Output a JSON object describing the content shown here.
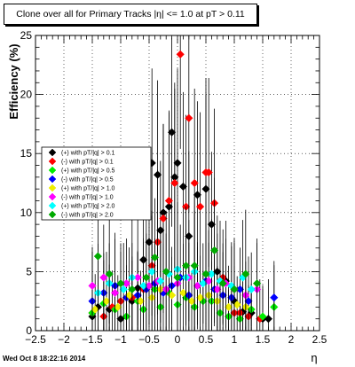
{
  "chart_data": {
    "type": "scatter",
    "title": "Clone  over all for Primary Tracks |η| <= 1.0 at pT > 0.11",
    "xlabel": "η",
    "ylabel": "Efficiency (%)",
    "xlim": [
      -2.5,
      2.5
    ],
    "ylim": [
      0,
      25
    ],
    "x_ticks": [
      "−2.5",
      "−2",
      "−1.5",
      "−1",
      "−0.5",
      "0",
      "0.5",
      "1",
      "1.5",
      "2",
      "2.5"
    ],
    "y_ticks": [
      "0",
      "5",
      "10",
      "15",
      "20",
      "25"
    ],
    "grid": true,
    "legend_position": "mid-left",
    "footer": "Wed Oct  8 18:22:16 2014",
    "series": [
      {
        "name": "(+) with pT/|q| > 0.1",
        "color": "#000000",
        "points": [
          [
            -1.5,
            1.2
          ],
          [
            -1.4,
            2.0
          ],
          [
            -1.2,
            1.8
          ],
          [
            -1.0,
            1.0
          ],
          [
            -0.8,
            2.5
          ],
          [
            -0.7,
            3.6
          ],
          [
            -0.6,
            6.0
          ],
          [
            -0.5,
            7.5
          ],
          [
            -0.45,
            14.2
          ],
          [
            -0.35,
            13.2
          ],
          [
            -0.3,
            8.5
          ],
          [
            -0.25,
            10.0
          ],
          [
            -0.15,
            10.5
          ],
          [
            -0.1,
            16.8
          ],
          [
            -0.05,
            13.0
          ],
          [
            0.0,
            14.2
          ],
          [
            0.1,
            12.2
          ],
          [
            0.2,
            8.0
          ],
          [
            0.35,
            11.5
          ],
          [
            0.5,
            12.0
          ],
          [
            0.6,
            9.0
          ],
          [
            0.7,
            5.0
          ],
          [
            0.85,
            4.2
          ],
          [
            1.0,
            2.5
          ],
          [
            1.15,
            1.6
          ],
          [
            1.3,
            1.5
          ],
          [
            1.5,
            1.0
          ],
          [
            1.6,
            1.0
          ]
        ]
      },
      {
        "name": "(-) with pT/|q| > 0.1",
        "color": "#ff0000",
        "points": [
          [
            -1.5,
            1.5
          ],
          [
            -1.3,
            1.2
          ],
          [
            -1.15,
            2.0
          ],
          [
            -1.0,
            2.5
          ],
          [
            -0.8,
            2.8
          ],
          [
            -0.6,
            3.5
          ],
          [
            -0.45,
            5.5
          ],
          [
            -0.35,
            7.5
          ],
          [
            -0.25,
            9.5
          ],
          [
            -0.15,
            11.0
          ],
          [
            -0.05,
            12.5
          ],
          [
            0.05,
            23.4
          ],
          [
            0.15,
            10.5
          ],
          [
            0.2,
            18.0
          ],
          [
            0.3,
            12.5
          ],
          [
            0.4,
            10.5
          ],
          [
            0.5,
            13.4
          ],
          [
            0.55,
            13.4
          ],
          [
            0.65,
            10.8
          ],
          [
            0.8,
            4.5
          ],
          [
            1.0,
            1.5
          ],
          [
            1.1,
            1.5
          ],
          [
            1.25,
            1.2
          ],
          [
            1.45,
            1.0
          ]
        ]
      },
      {
        "name": "(+) with pT/|q| > 0.5",
        "color": "#00ee00",
        "points": [
          [
            -1.5,
            1.5
          ],
          [
            -1.3,
            2.3
          ],
          [
            -1.1,
            1.8
          ],
          [
            -0.9,
            1.2
          ],
          [
            -0.7,
            2.5
          ],
          [
            -0.6,
            1.8
          ],
          [
            -0.4,
            3.5
          ],
          [
            -0.3,
            2.0
          ],
          [
            -0.15,
            3.2
          ],
          [
            0.0,
            2.2
          ],
          [
            0.15,
            2.8
          ],
          [
            0.3,
            2.0
          ],
          [
            0.45,
            2.5
          ],
          [
            0.6,
            2.5
          ],
          [
            0.75,
            1.5
          ],
          [
            0.9,
            1.2
          ],
          [
            1.1,
            1.0
          ],
          [
            1.3,
            1.8
          ],
          [
            1.5,
            1.2
          ],
          [
            1.7,
            2.0
          ]
        ]
      },
      {
        "name": "(-) with pT/|q| > 0.5",
        "color": "#0000ff",
        "points": [
          [
            -1.5,
            2.5
          ],
          [
            -1.3,
            3.2
          ],
          [
            -1.1,
            3.8
          ],
          [
            -0.9,
            2.8
          ],
          [
            -0.7,
            3.0
          ],
          [
            -0.55,
            3.5
          ],
          [
            -0.4,
            4.0
          ],
          [
            -0.25,
            3.2
          ],
          [
            -0.1,
            3.8
          ],
          [
            0.05,
            4.5
          ],
          [
            0.2,
            3.0
          ],
          [
            0.35,
            3.8
          ],
          [
            0.5,
            4.2
          ],
          [
            0.65,
            3.5
          ],
          [
            0.8,
            3.0
          ],
          [
            0.95,
            2.8
          ],
          [
            1.1,
            3.5
          ],
          [
            1.25,
            2.5
          ],
          [
            1.7,
            2.8
          ]
        ]
      },
      {
        "name": "(+) with pT/|q| > 1.0",
        "color": "#eeee00",
        "points": [
          [
            -1.45,
            1.8
          ],
          [
            -1.25,
            2.5
          ],
          [
            -1.05,
            2.0
          ],
          [
            -0.85,
            3.0
          ],
          [
            -0.65,
            2.5
          ],
          [
            -0.45,
            2.8
          ],
          [
            -0.3,
            3.5
          ],
          [
            -0.1,
            3.0
          ],
          [
            0.1,
            3.2
          ],
          [
            0.25,
            2.5
          ],
          [
            0.4,
            2.8
          ],
          [
            0.55,
            3.0
          ],
          [
            0.7,
            2.5
          ],
          [
            0.9,
            2.0
          ],
          [
            1.05,
            2.2
          ],
          [
            1.2,
            2.0
          ]
        ]
      },
      {
        "name": "(-) with pT/|q| > 1.0",
        "color": "#ff00ff",
        "points": [
          [
            -1.5,
            3.8
          ],
          [
            -1.3,
            4.5
          ],
          [
            -1.1,
            3.2
          ],
          [
            -0.9,
            4.0
          ],
          [
            -0.7,
            4.5
          ],
          [
            -0.5,
            3.8
          ],
          [
            -0.35,
            4.2
          ],
          [
            -0.2,
            3.5
          ],
          [
            0.0,
            4.0
          ],
          [
            0.2,
            4.5
          ],
          [
            0.35,
            3.8
          ],
          [
            0.55,
            4.2
          ],
          [
            0.7,
            3.5
          ],
          [
            0.85,
            4.0
          ],
          [
            1.0,
            3.5
          ],
          [
            1.2,
            3.0
          ],
          [
            1.4,
            3.5
          ]
        ]
      },
      {
        "name": "(+) with pT/|q| > 2.0",
        "color": "#00ffff",
        "points": [
          [
            -1.4,
            3.2
          ],
          [
            -1.2,
            4.0
          ],
          [
            -0.95,
            3.5
          ],
          [
            -0.8,
            4.5
          ],
          [
            -0.6,
            3.8
          ],
          [
            -0.45,
            5.0
          ],
          [
            -0.3,
            4.2
          ],
          [
            -0.15,
            4.8
          ],
          [
            0.0,
            5.2
          ],
          [
            0.15,
            4.5
          ],
          [
            0.3,
            5.0
          ],
          [
            0.45,
            4.0
          ],
          [
            0.6,
            4.8
          ],
          [
            0.75,
            4.2
          ],
          [
            0.95,
            3.8
          ],
          [
            1.15,
            4.5
          ],
          [
            1.3,
            3.5
          ]
        ]
      },
      {
        "name": "(-) with pT/|q| > 2.0",
        "color": "#00aa00",
        "points": [
          [
            -1.4,
            6.3
          ],
          [
            -1.2,
            4.8
          ],
          [
            -1.0,
            4.0
          ],
          [
            -0.8,
            3.5
          ],
          [
            -0.55,
            4.5
          ],
          [
            -0.4,
            6.2
          ],
          [
            -0.2,
            5.0
          ],
          [
            0.0,
            4.5
          ],
          [
            0.15,
            5.5
          ],
          [
            0.3,
            5.5
          ],
          [
            0.5,
            4.8
          ],
          [
            0.65,
            6.8
          ],
          [
            0.8,
            4.0
          ],
          [
            1.0,
            3.5
          ],
          [
            1.2,
            4.8
          ],
          [
            1.4,
            4.0
          ]
        ]
      }
    ]
  }
}
